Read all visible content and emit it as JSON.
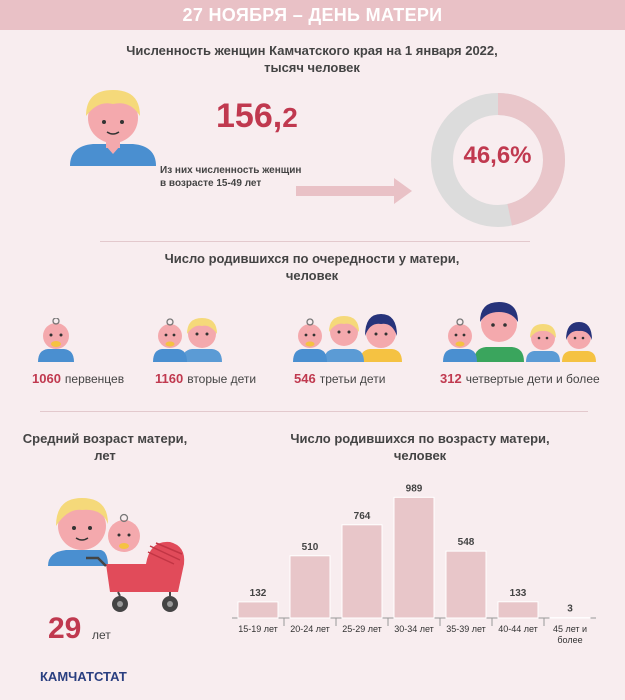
{
  "header": {
    "title": "27 НОЯБРЯ – ДЕНЬ МАТЕРИ"
  },
  "section1": {
    "title_line1": "Численность женщин Камчатского края на 1 января 2022,",
    "title_line2": "тысяч человек",
    "women_total_int": "156,",
    "women_total_dec": "2",
    "note_line1": "Из них численность женщин",
    "note_line2": "в возрасте 15-49 лет",
    "share_percent_label": "46,6%",
    "share_percent_value": 46.6
  },
  "section2": {
    "title_line1": "Число родившихся по очередности у матери,",
    "title_line2": "человек",
    "items": [
      {
        "value": "1060",
        "label": "первенцев"
      },
      {
        "value": "1160",
        "label": "вторые дети"
      },
      {
        "value": "546",
        "label": "третьи дети"
      },
      {
        "value": "312",
        "label": "четвертые дети и более"
      }
    ]
  },
  "section3": {
    "title_line1": "Средний возраст матери,",
    "title_line2": "лет",
    "age": "29",
    "age_unit": "лет"
  },
  "section4": {
    "title_line1": "Число родившихся по возрасту матери,",
    "title_line2": "человек"
  },
  "chart_data": {
    "type": "bar",
    "categories": [
      "15-19 лет",
      "20-24 лет",
      "25-29 лет",
      "30-34 лет",
      "35-39 лет",
      "40-44 лет",
      "45 лет и более"
    ],
    "category_lines": [
      [
        "15-19 лет"
      ],
      [
        "20-24 лет"
      ],
      [
        "25-29 лет"
      ],
      [
        "30-34 лет"
      ],
      [
        "35-39 лет"
      ],
      [
        "40-44 лет"
      ],
      [
        "45 лет и",
        "более"
      ]
    ],
    "values": [
      132,
      510,
      764,
      989,
      548,
      133,
      3
    ],
    "data_labels": [
      "132",
      "510",
      "764",
      "989",
      "548",
      "133",
      "3"
    ],
    "ylim": [
      0,
      1000
    ],
    "bar_color": "#e8c6c9",
    "bar_stroke": "#ffffff"
  },
  "colors": {
    "accent": "#c0394f",
    "header_bg": "#e9c1c6",
    "donut_fill": "#e9c6ca",
    "donut_track": "#dcdcdc",
    "footer": "#2a3f80"
  },
  "footer": {
    "brand": "КАМЧАТСТАТ"
  }
}
